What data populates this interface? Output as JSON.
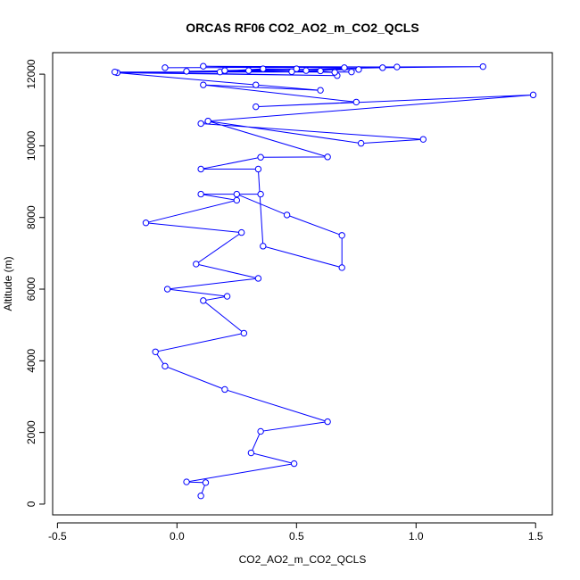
{
  "chart_data": {
    "type": "line",
    "title": "ORCAS RF06 CO2_AO2_m_CO2_QCLS",
    "xlabel": "CO2_AO2_m_CO2_QCLS",
    "ylabel": "Altitude (m)",
    "xlim": [
      -0.52,
      1.57
    ],
    "ylim": [
      -300,
      12600
    ],
    "x_ticks": [
      -0.5,
      0.0,
      0.5,
      1.0,
      1.5
    ],
    "x_tick_labels": [
      "-0.5",
      "0.0",
      "0.5",
      "1.0",
      "1.5"
    ],
    "y_ticks": [
      0,
      2000,
      4000,
      6000,
      8000,
      10000,
      12000
    ],
    "y_tick_labels": [
      "0",
      "2000",
      "4000",
      "6000",
      "8000",
      "10000",
      "12000"
    ],
    "grid": false,
    "line_color": "#0000ff",
    "marker": "open-circle",
    "series": [
      {
        "name": "",
        "x": [
          0.1,
          0.12,
          0.04,
          0.49,
          0.31,
          0.35,
          0.63,
          0.2,
          -0.05,
          -0.09,
          0.28,
          0.11,
          0.21,
          -0.04,
          0.34,
          0.08,
          0.27,
          -0.13,
          0.25,
          0.1,
          0.35,
          0.25,
          0.46,
          0.69,
          0.69,
          0.36,
          0.34,
          0.1,
          0.35,
          0.63,
          0.13,
          0.77,
          1.03,
          0.1,
          0.13,
          1.49,
          0.33,
          0.75,
          0.11,
          0.6,
          0.33,
          -0.25,
          0.67,
          -0.26,
          0.73,
          0.48,
          0.66,
          0.6,
          0.3,
          0.04,
          0.54,
          0.18,
          0.76,
          0.36,
          0.2,
          0.5,
          0.2,
          0.86,
          1.28,
          -0.05,
          0.92,
          0.11,
          0.7
        ],
        "y": [
          230,
          600,
          620,
          1130,
          1430,
          2030,
          2300,
          3200,
          3850,
          4250,
          4770,
          5680,
          5800,
          6000,
          6300,
          6700,
          7580,
          7850,
          8480,
          8650,
          8650,
          8650,
          8070,
          7500,
          6600,
          7200,
          9350,
          9350,
          9680,
          9690,
          10690,
          10070,
          10180,
          10620,
          10690,
          11420,
          11090,
          11220,
          11700,
          11550,
          11700,
          12040,
          11960,
          12060,
          12060,
          12070,
          12050,
          12090,
          12100,
          12080,
          12100,
          12060,
          12130,
          12150,
          12090,
          12150,
          12100,
          12180,
          12210,
          12180,
          12200,
          12220,
          12180
        ]
      }
    ]
  }
}
